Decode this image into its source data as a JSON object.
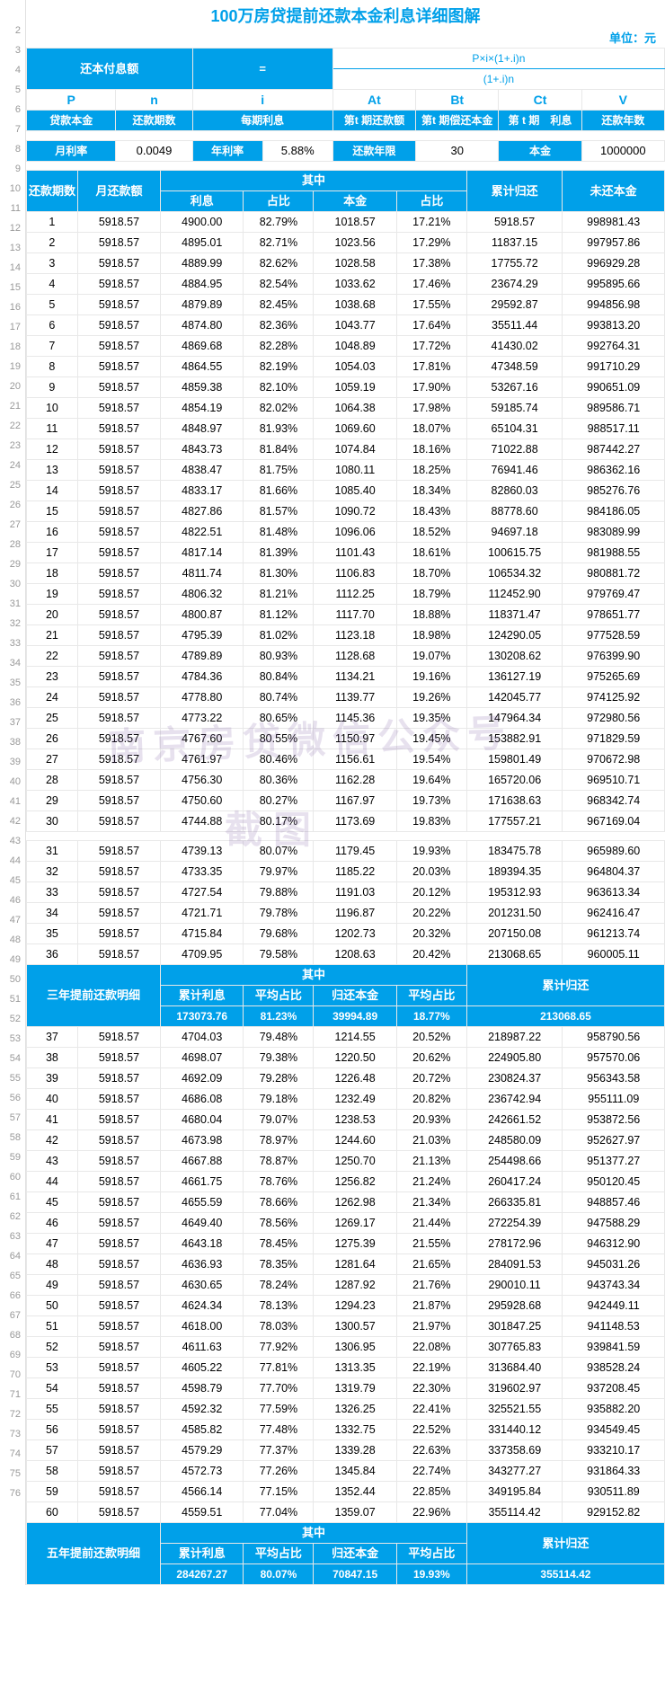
{
  "title": "100万房贷提前还款本金利息详细图解",
  "unit": "单位：元",
  "colors": {
    "primary": "#00a0e9",
    "text": "#000000",
    "border": "#e8e8e8",
    "linenum": "#999999",
    "bg": "#ffffff",
    "watermark": "rgba(120,90,160,0.18)"
  },
  "formula": {
    "lhs": "还本付息额",
    "eq": "=",
    "numerator": "P×i×(1+.i)n",
    "denom": "(1+.i)n"
  },
  "cols": {
    "codes": [
      "P",
      "n",
      "i",
      "At",
      "Bt",
      "Ct",
      "V"
    ],
    "labels": [
      "贷款本金",
      "还款期数",
      "每期利息",
      "第t 期还款额",
      "第t 期偿还本金",
      "第 t 期　利息",
      "还款年数"
    ]
  },
  "params": {
    "items": [
      {
        "label": "月利率",
        "value": "0.0049"
      },
      {
        "label": "年利率",
        "value": "5.88%"
      },
      {
        "label": "还款年限",
        "value": "30"
      },
      {
        "label": "本金",
        "value": "1000000"
      }
    ]
  },
  "table_headers": {
    "period": "还款期数",
    "monthly": "月还款额",
    "among": "其中",
    "interest": "利息",
    "ratio1": "占比",
    "principal": "本金",
    "ratio2": "占比",
    "cum": "累计归还",
    "remain": "未还本金"
  },
  "rows1": [
    [
      1,
      "5918.57",
      "4900.00",
      "82.79%",
      "1018.57",
      "17.21%",
      "5918.57",
      "998981.43"
    ],
    [
      2,
      "5918.57",
      "4895.01",
      "82.71%",
      "1023.56",
      "17.29%",
      "11837.15",
      "997957.86"
    ],
    [
      3,
      "5918.57",
      "4889.99",
      "82.62%",
      "1028.58",
      "17.38%",
      "17755.72",
      "996929.28"
    ],
    [
      4,
      "5918.57",
      "4884.95",
      "82.54%",
      "1033.62",
      "17.46%",
      "23674.29",
      "995895.66"
    ],
    [
      5,
      "5918.57",
      "4879.89",
      "82.45%",
      "1038.68",
      "17.55%",
      "29592.87",
      "994856.98"
    ],
    [
      6,
      "5918.57",
      "4874.80",
      "82.36%",
      "1043.77",
      "17.64%",
      "35511.44",
      "993813.20"
    ],
    [
      7,
      "5918.57",
      "4869.68",
      "82.28%",
      "1048.89",
      "17.72%",
      "41430.02",
      "992764.31"
    ],
    [
      8,
      "5918.57",
      "4864.55",
      "82.19%",
      "1054.03",
      "17.81%",
      "47348.59",
      "991710.29"
    ],
    [
      9,
      "5918.57",
      "4859.38",
      "82.10%",
      "1059.19",
      "17.90%",
      "53267.16",
      "990651.09"
    ],
    [
      10,
      "5918.57",
      "4854.19",
      "82.02%",
      "1064.38",
      "17.98%",
      "59185.74",
      "989586.71"
    ],
    [
      11,
      "5918.57",
      "4848.97",
      "81.93%",
      "1069.60",
      "18.07%",
      "65104.31",
      "988517.11"
    ],
    [
      12,
      "5918.57",
      "4843.73",
      "81.84%",
      "1074.84",
      "18.16%",
      "71022.88",
      "987442.27"
    ],
    [
      13,
      "5918.57",
      "4838.47",
      "81.75%",
      "1080.11",
      "18.25%",
      "76941.46",
      "986362.16"
    ],
    [
      14,
      "5918.57",
      "4833.17",
      "81.66%",
      "1085.40",
      "18.34%",
      "82860.03",
      "985276.76"
    ],
    [
      15,
      "5918.57",
      "4827.86",
      "81.57%",
      "1090.72",
      "18.43%",
      "88778.60",
      "984186.05"
    ],
    [
      16,
      "5918.57",
      "4822.51",
      "81.48%",
      "1096.06",
      "18.52%",
      "94697.18",
      "983089.99"
    ],
    [
      17,
      "5918.57",
      "4817.14",
      "81.39%",
      "1101.43",
      "18.61%",
      "100615.75",
      "981988.55"
    ],
    [
      18,
      "5918.57",
      "4811.74",
      "81.30%",
      "1106.83",
      "18.70%",
      "106534.32",
      "980881.72"
    ],
    [
      19,
      "5918.57",
      "4806.32",
      "81.21%",
      "1112.25",
      "18.79%",
      "112452.90",
      "979769.47"
    ],
    [
      20,
      "5918.57",
      "4800.87",
      "81.12%",
      "1117.70",
      "18.88%",
      "118371.47",
      "978651.77"
    ],
    [
      21,
      "5918.57",
      "4795.39",
      "81.02%",
      "1123.18",
      "18.98%",
      "124290.05",
      "977528.59"
    ],
    [
      22,
      "5918.57",
      "4789.89",
      "80.93%",
      "1128.68",
      "19.07%",
      "130208.62",
      "976399.90"
    ],
    [
      23,
      "5918.57",
      "4784.36",
      "80.84%",
      "1134.21",
      "19.16%",
      "136127.19",
      "975265.69"
    ],
    [
      24,
      "5918.57",
      "4778.80",
      "80.74%",
      "1139.77",
      "19.26%",
      "142045.77",
      "974125.92"
    ],
    [
      25,
      "5918.57",
      "4773.22",
      "80.65%",
      "1145.36",
      "19.35%",
      "147964.34",
      "972980.56"
    ],
    [
      26,
      "5918.57",
      "4767.60",
      "80.55%",
      "1150.97",
      "19.45%",
      "153882.91",
      "971829.59"
    ],
    [
      27,
      "5918.57",
      "4761.97",
      "80.46%",
      "1156.61",
      "19.54%",
      "159801.49",
      "970672.98"
    ],
    [
      28,
      "5918.57",
      "4756.30",
      "80.36%",
      "1162.28",
      "19.64%",
      "165720.06",
      "969510.71"
    ],
    [
      29,
      "5918.57",
      "4750.60",
      "80.27%",
      "1167.97",
      "19.73%",
      "171638.63",
      "968342.74"
    ],
    [
      30,
      "5918.57",
      "4744.88",
      "80.17%",
      "1173.69",
      "19.83%",
      "177557.21",
      "967169.04"
    ]
  ],
  "rows2": [
    [
      31,
      "5918.57",
      "4739.13",
      "80.07%",
      "1179.45",
      "19.93%",
      "183475.78",
      "965989.60"
    ],
    [
      32,
      "5918.57",
      "4733.35",
      "79.97%",
      "1185.22",
      "20.03%",
      "189394.35",
      "964804.37"
    ],
    [
      33,
      "5918.57",
      "4727.54",
      "79.88%",
      "1191.03",
      "20.12%",
      "195312.93",
      "963613.34"
    ],
    [
      34,
      "5918.57",
      "4721.71",
      "79.78%",
      "1196.87",
      "20.22%",
      "201231.50",
      "962416.47"
    ],
    [
      35,
      "5918.57",
      "4715.84",
      "79.68%",
      "1202.73",
      "20.32%",
      "207150.08",
      "961213.74"
    ],
    [
      36,
      "5918.57",
      "4709.95",
      "79.58%",
      "1208.63",
      "20.42%",
      "213068.65",
      "960005.11"
    ]
  ],
  "summary3": {
    "label": "三年提前还款明细",
    "among": "其中",
    "cols": [
      "累计利息",
      "平均占比",
      "归还本金",
      "平均占比"
    ],
    "cum": "累计归还",
    "vals": [
      "173073.76",
      "81.23%",
      "39994.89",
      "18.77%",
      "213068.65"
    ]
  },
  "rows3": [
    [
      37,
      "5918.57",
      "4704.03",
      "79.48%",
      "1214.55",
      "20.52%",
      "218987.22",
      "958790.56"
    ],
    [
      38,
      "5918.57",
      "4698.07",
      "79.38%",
      "1220.50",
      "20.62%",
      "224905.80",
      "957570.06"
    ],
    [
      39,
      "5918.57",
      "4692.09",
      "79.28%",
      "1226.48",
      "20.72%",
      "230824.37",
      "956343.58"
    ],
    [
      40,
      "5918.57",
      "4686.08",
      "79.18%",
      "1232.49",
      "20.82%",
      "236742.94",
      "955111.09"
    ],
    [
      41,
      "5918.57",
      "4680.04",
      "79.07%",
      "1238.53",
      "20.93%",
      "242661.52",
      "953872.56"
    ],
    [
      42,
      "5918.57",
      "4673.98",
      "78.97%",
      "1244.60",
      "21.03%",
      "248580.09",
      "952627.97"
    ],
    [
      43,
      "5918.57",
      "4667.88",
      "78.87%",
      "1250.70",
      "21.13%",
      "254498.66",
      "951377.27"
    ],
    [
      44,
      "5918.57",
      "4661.75",
      "78.76%",
      "1256.82",
      "21.24%",
      "260417.24",
      "950120.45"
    ],
    [
      45,
      "5918.57",
      "4655.59",
      "78.66%",
      "1262.98",
      "21.34%",
      "266335.81",
      "948857.46"
    ],
    [
      46,
      "5918.57",
      "4649.40",
      "78.56%",
      "1269.17",
      "21.44%",
      "272254.39",
      "947588.29"
    ],
    [
      47,
      "5918.57",
      "4643.18",
      "78.45%",
      "1275.39",
      "21.55%",
      "278172.96",
      "946312.90"
    ],
    [
      48,
      "5918.57",
      "4636.93",
      "78.35%",
      "1281.64",
      "21.65%",
      "284091.53",
      "945031.26"
    ],
    [
      49,
      "5918.57",
      "4630.65",
      "78.24%",
      "1287.92",
      "21.76%",
      "290010.11",
      "943743.34"
    ],
    [
      50,
      "5918.57",
      "4624.34",
      "78.13%",
      "1294.23",
      "21.87%",
      "295928.68",
      "942449.11"
    ],
    [
      51,
      "5918.57",
      "4618.00",
      "78.03%",
      "1300.57",
      "21.97%",
      "301847.25",
      "941148.53"
    ],
    [
      52,
      "5918.57",
      "4611.63",
      "77.92%",
      "1306.95",
      "22.08%",
      "307765.83",
      "939841.59"
    ],
    [
      53,
      "5918.57",
      "4605.22",
      "77.81%",
      "1313.35",
      "22.19%",
      "313684.40",
      "938528.24"
    ],
    [
      54,
      "5918.57",
      "4598.79",
      "77.70%",
      "1319.79",
      "22.30%",
      "319602.97",
      "937208.45"
    ],
    [
      55,
      "5918.57",
      "4592.32",
      "77.59%",
      "1326.25",
      "22.41%",
      "325521.55",
      "935882.20"
    ],
    [
      56,
      "5918.57",
      "4585.82",
      "77.48%",
      "1332.75",
      "22.52%",
      "331440.12",
      "934549.45"
    ],
    [
      57,
      "5918.57",
      "4579.29",
      "77.37%",
      "1339.28",
      "22.63%",
      "337358.69",
      "933210.17"
    ],
    [
      58,
      "5918.57",
      "4572.73",
      "77.26%",
      "1345.84",
      "22.74%",
      "343277.27",
      "931864.33"
    ],
    [
      59,
      "5918.57",
      "4566.14",
      "77.15%",
      "1352.44",
      "22.85%",
      "349195.84",
      "930511.89"
    ],
    [
      60,
      "5918.57",
      "4559.51",
      "77.04%",
      "1359.07",
      "22.96%",
      "355114.42",
      "929152.82"
    ]
  ],
  "summary5": {
    "label": "五年提前还款明细",
    "among": "其中",
    "cols": [
      "累计利息",
      "平均占比",
      "归还本金",
      "平均占比"
    ],
    "cum": "累计归还",
    "vals": [
      "284267.27",
      "80.07%",
      "70847.15",
      "19.93%",
      "355114.42"
    ]
  },
  "watermark1": "南京房贷微信公众号",
  "watermark2": "截图",
  "line_numbers": [
    2,
    3,
    4,
    5,
    6,
    7,
    8,
    9,
    10,
    11,
    12,
    13,
    14,
    15,
    16,
    17,
    18,
    19,
    20,
    21,
    22,
    23,
    24,
    25,
    26,
    27,
    28,
    29,
    30,
    31,
    32,
    33,
    34,
    35,
    36,
    37,
    38,
    39,
    40,
    41,
    42,
    43,
    44,
    45,
    46,
    47,
    48,
    49,
    50,
    51,
    52,
    53,
    54,
    55,
    56,
    57,
    58,
    59,
    60,
    61,
    62,
    63,
    64,
    65,
    66,
    67,
    68,
    69,
    70,
    71,
    72,
    73,
    74,
    75,
    76
  ]
}
